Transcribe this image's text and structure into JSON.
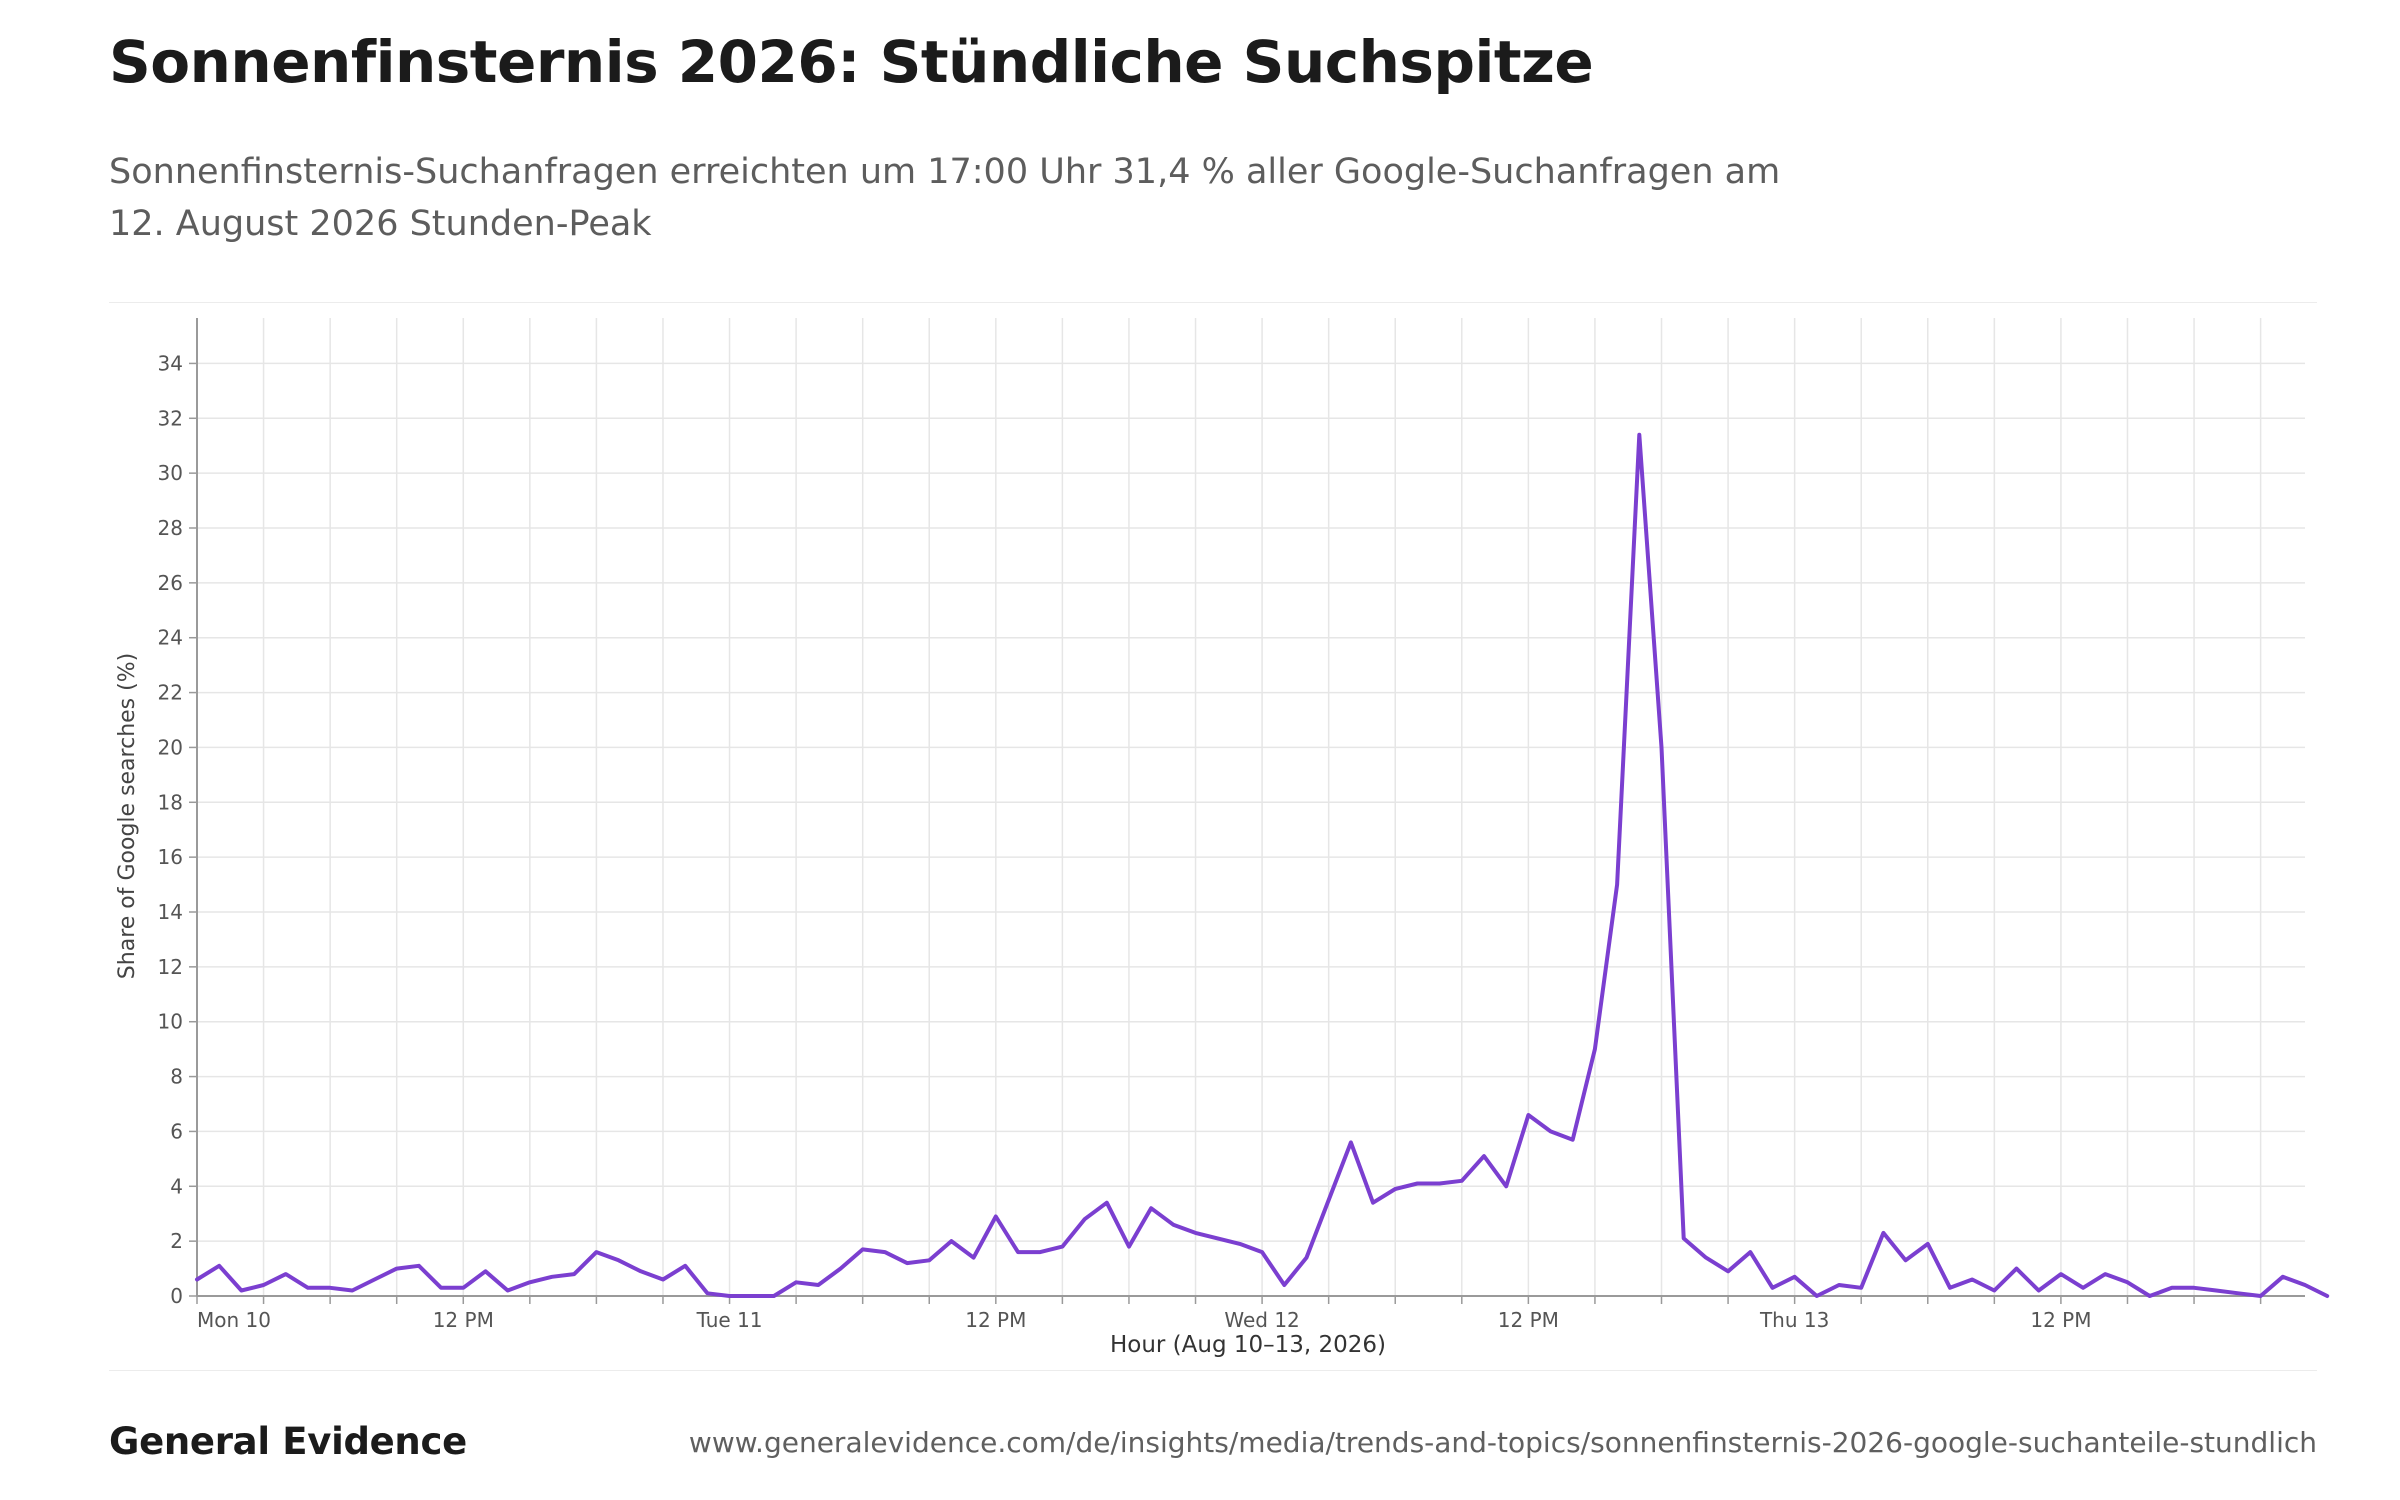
{
  "header": {
    "title": "Sonnenfinsternis 2026: Stündliche Suchspitze",
    "subtitle": "Sonnenfinsternis-Suchanfragen erreichten um 17:00 Uhr 31,4 % aller Google-Suchanfragen am 12. August 2026 Stunden-Peak"
  },
  "footer": {
    "brand": "General Evidence",
    "source": "www.generalevidence.com/de/insights/media/trends-and-topics/sonnenfinsternis-2026-google-suchanteile-stundlich"
  },
  "colors": {
    "line": "#7b3fd0",
    "grid": "#e6e6e6",
    "axis": "#9a9a9a",
    "text": "#555555"
  },
  "chart_data": {
    "type": "line",
    "title": "",
    "xlabel": "Hour (Aug 10–13, 2026)",
    "ylabel": "Share of Google searches (%)",
    "ylim": [
      0,
      35
    ],
    "yticks": [
      0,
      2,
      4,
      6,
      8,
      10,
      12,
      14,
      16,
      18,
      20,
      22,
      24,
      26,
      28,
      30,
      32,
      34
    ],
    "xlim": [
      "2026-08-10 00:00",
      "2026-08-13 23:00"
    ],
    "xtick_labels": [
      {
        "at": "2026-08-10 00:00",
        "label": "Mon 10"
      },
      {
        "at": "2026-08-10 12:00",
        "label": "12 PM"
      },
      {
        "at": "2026-08-11 00:00",
        "label": "Tue 11"
      },
      {
        "at": "2026-08-11 12:00",
        "label": "12 PM"
      },
      {
        "at": "2026-08-12 00:00",
        "label": "Wed 12"
      },
      {
        "at": "2026-08-12 12:00",
        "label": "12 PM"
      },
      {
        "at": "2026-08-13 00:00",
        "label": "Thu 13"
      },
      {
        "at": "2026-08-13 12:00",
        "label": "12 PM"
      }
    ],
    "grid": true,
    "legend": "none",
    "series": [
      {
        "x_start": "2026-08-10 00:00",
        "x_step": "1 hour",
        "values": [
          0.6,
          1.1,
          0.2,
          0.4,
          0.8,
          0.3,
          0.3,
          0.2,
          0.6,
          1.0,
          1.1,
          0.3,
          0.3,
          0.9,
          0.2,
          0.5,
          0.7,
          0.8,
          1.6,
          1.3,
          0.9,
          0.6,
          1.1,
          0.1,
          0.0,
          0.0,
          0.0,
          0.5,
          0.4,
          1.0,
          1.7,
          1.6,
          1.2,
          1.3,
          2.0,
          1.4,
          2.9,
          1.6,
          1.6,
          1.8,
          2.8,
          3.4,
          1.8,
          3.2,
          2.6,
          2.3,
          2.1,
          1.9,
          1.6,
          0.4,
          1.4,
          3.5,
          5.6,
          3.4,
          3.9,
          4.1,
          4.1,
          4.2,
          5.1,
          4.0,
          6.6,
          6.0,
          5.7,
          9.0,
          15.0,
          31.4,
          20.0,
          2.1,
          1.4,
          0.9,
          1.6,
          0.3,
          0.7,
          0.0,
          0.4,
          0.3,
          2.3,
          1.3,
          1.9,
          0.3,
          0.6,
          0.2,
          1.0,
          0.2,
          0.8,
          0.3,
          0.8,
          0.5,
          0.0,
          0.3,
          0.3,
          0.2,
          0.1,
          0.0,
          0.7,
          0.4,
          0.0
        ]
      }
    ]
  }
}
